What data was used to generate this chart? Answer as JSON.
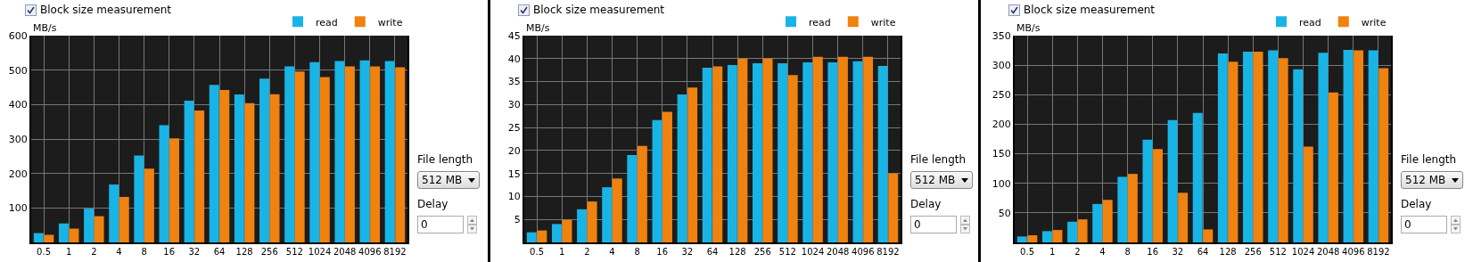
{
  "chart_data": [
    {
      "type": "bar",
      "ylabel": "MB/s",
      "categories": [
        "0.5",
        "1",
        "2",
        "4",
        "8",
        "16",
        "32",
        "64",
        "128",
        "256",
        "512",
        "1024",
        "2048",
        "4096",
        "8192"
      ],
      "series": [
        {
          "name": "read",
          "color": "#19b4e6",
          "values": [
            27,
            55,
            98,
            168,
            252,
            340,
            411,
            457,
            429,
            475,
            511,
            523,
            526,
            528,
            526
          ]
        },
        {
          "name": "write",
          "color": "#f0820f",
          "values": [
            22,
            40,
            76,
            132,
            214,
            302,
            383,
            442,
            404,
            430,
            496,
            480,
            511,
            511,
            508
          ]
        }
      ],
      "ylim": [
        0,
        600
      ],
      "yticks": [
        100,
        200,
        300,
        400,
        500,
        600
      ],
      "grid": true,
      "legend": "top right",
      "annotations": [
        "Block size measurement",
        "File length",
        "512 MB",
        "Delay",
        "0"
      ]
    },
    {
      "type": "bar",
      "ylabel": "MB/s",
      "categories": [
        "0.5",
        "1",
        "2",
        "4",
        "8",
        "16",
        "32",
        "64",
        "128",
        "256",
        "512",
        "1024",
        "2048",
        "4096",
        "8192"
      ],
      "series": [
        {
          "name": "read",
          "color": "#19b4e6",
          "values": [
            2.2,
            4,
            7.2,
            12,
            19,
            26.6,
            32.2,
            38,
            38.6,
            39,
            39,
            39.2,
            39.2,
            39.4,
            38.4
          ]
        },
        {
          "name": "write",
          "color": "#f0820f",
          "values": [
            2.6,
            4.9,
            8.9,
            13.9,
            21,
            28.4,
            33.7,
            38.3,
            40,
            40,
            36.4,
            40.4,
            40.4,
            40.4,
            15
          ]
        }
      ],
      "ylim": [
        0,
        45
      ],
      "yticks": [
        5,
        10,
        15,
        20,
        25,
        30,
        35,
        40,
        45
      ],
      "grid": true,
      "legend": "top right",
      "annotations": [
        "Block size measurement",
        "File length",
        "512 MB",
        "Delay",
        "0"
      ]
    },
    {
      "type": "bar",
      "ylabel": "MB/s",
      "categories": [
        "0.5",
        "1",
        "2",
        "4",
        "8",
        "16",
        "32",
        "64",
        "128",
        "256",
        "512",
        "1024",
        "2048",
        "4096",
        "8192"
      ],
      "series": [
        {
          "name": "read",
          "color": "#19b4e6",
          "values": [
            10,
            19,
            35,
            65,
            111,
            174,
            207,
            219,
            320,
            323,
            325,
            293,
            321,
            326,
            325
          ]
        },
        {
          "name": "write",
          "color": "#f0820f",
          "values": [
            12,
            21,
            39,
            72,
            116,
            158,
            84,
            22,
            306,
            323,
            312,
            162,
            254,
            325,
            295
          ]
        }
      ],
      "ylim": [
        0,
        350
      ],
      "yticks": [
        50,
        100,
        150,
        200,
        250,
        300,
        350
      ],
      "grid": true,
      "legend": "top right",
      "annotations": [
        "Block size measurement",
        "File length",
        "512 MB",
        "Delay",
        "0"
      ]
    }
  ]
}
